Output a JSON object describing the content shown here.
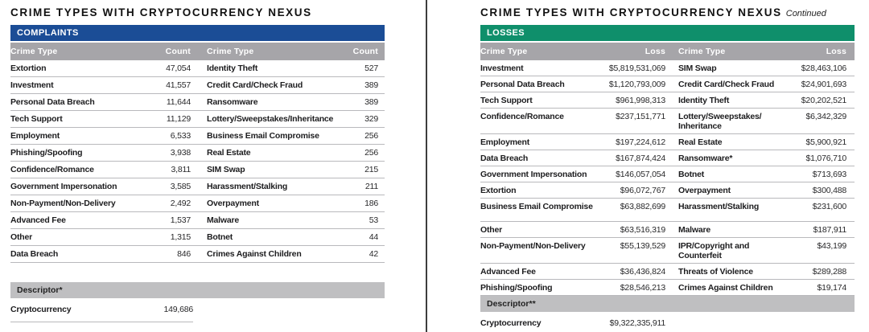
{
  "colors": {
    "complaints_header": "#1b4d96",
    "losses_header": "#0f8f6b",
    "column_header": "#a6a5a9",
    "descriptor_bar": "#bfbfc1",
    "row_border": "#b9b9bc",
    "divider": "#3d3d3d"
  },
  "left": {
    "title": "CRIME TYPES WITH CRYPTOCURRENCY NEXUS",
    "section_label": "COMPLAINTS",
    "columns": [
      "Crime Type",
      "Count",
      "Crime Type",
      "Count"
    ],
    "rows": [
      [
        "Extortion",
        "47,054",
        "Identity Theft",
        "527"
      ],
      [
        "Investment",
        "41,557",
        "Credit Card/Check Fraud",
        "389"
      ],
      [
        "Personal Data Breach",
        "11,644",
        "Ransomware",
        "389"
      ],
      [
        "Tech Support",
        "11,129",
        "Lottery/Sweepstakes/Inheritance",
        "329"
      ],
      [
        "Employment",
        "6,533",
        "Business Email Compromise",
        "256"
      ],
      [
        "Phishing/Spoofing",
        "3,938",
        "Real Estate",
        "256"
      ],
      [
        "Confidence/Romance",
        "3,811",
        "SIM Swap",
        "215"
      ],
      [
        "Government Impersonation",
        "3,585",
        "Harassment/Stalking",
        "211"
      ],
      [
        "Non-Payment/Non-Delivery",
        "2,492",
        "Overpayment",
        "186"
      ],
      [
        "Advanced Fee",
        "1,537",
        "Malware",
        "53"
      ],
      [
        "Other",
        "1,315",
        "Botnet",
        "44"
      ],
      [
        "Data Breach",
        "846",
        "Crimes Against Children",
        "42"
      ]
    ],
    "descriptor_label": "Descriptor*",
    "descriptor_row": {
      "name": "Cryptocurrency",
      "value": "149,686"
    }
  },
  "right": {
    "title": "CRIME TYPES WITH CRYPTOCURRENCY NEXUS",
    "title_suffix": "Continued",
    "section_label": "LOSSES",
    "columns": [
      "Crime Type",
      "Loss",
      "Crime Type",
      "Loss"
    ],
    "rows": [
      [
        "Investment",
        "$5,819,531,069",
        "SIM Swap",
        "$28,463,106"
      ],
      [
        "Personal Data Breach",
        "$1,120,793,009",
        "Credit Card/Check Fraud",
        "$24,901,693"
      ],
      [
        "Tech Support",
        "$961,998,313",
        "Identity Theft",
        "$20,202,521"
      ],
      [
        "Confidence/Romance",
        "$237,151,771",
        "Lottery/Sweepstakes/\nInheritance",
        "$6,342,329"
      ],
      [
        "Employment",
        "$197,224,612",
        "Real Estate",
        "$5,900,921"
      ],
      [
        "Data Breach",
        "$167,874,424",
        "Ransomware*",
        "$1,076,710"
      ],
      [
        "Government Impersonation",
        "$146,057,054",
        "Botnet",
        "$713,693"
      ],
      [
        "Extortion",
        "$96,072,767",
        "Overpayment",
        "$300,488"
      ],
      [
        "Business Email Compromise",
        "$63,882,699",
        "Harassment/Stalking",
        "$231,600"
      ],
      [
        "Other",
        "$63,516,319",
        "Malware",
        "$187,911"
      ],
      [
        "Non-Payment/Non-Delivery",
        "$55,139,529",
        "IPR/Copyright and\nCounterfeit",
        "$43,199"
      ],
      [
        "Advanced Fee",
        "$36,436,824",
        "Threats of Violence",
        "$289,288"
      ],
      [
        "Phishing/Spoofing",
        "$28,546,213",
        "Crimes Against Children",
        "$19,174"
      ]
    ],
    "tall_rows": [
      8
    ],
    "descriptor_label": "Descriptor**",
    "descriptor_row": {
      "name": "Cryptocurrency",
      "value": "$9,322,335,911"
    }
  }
}
